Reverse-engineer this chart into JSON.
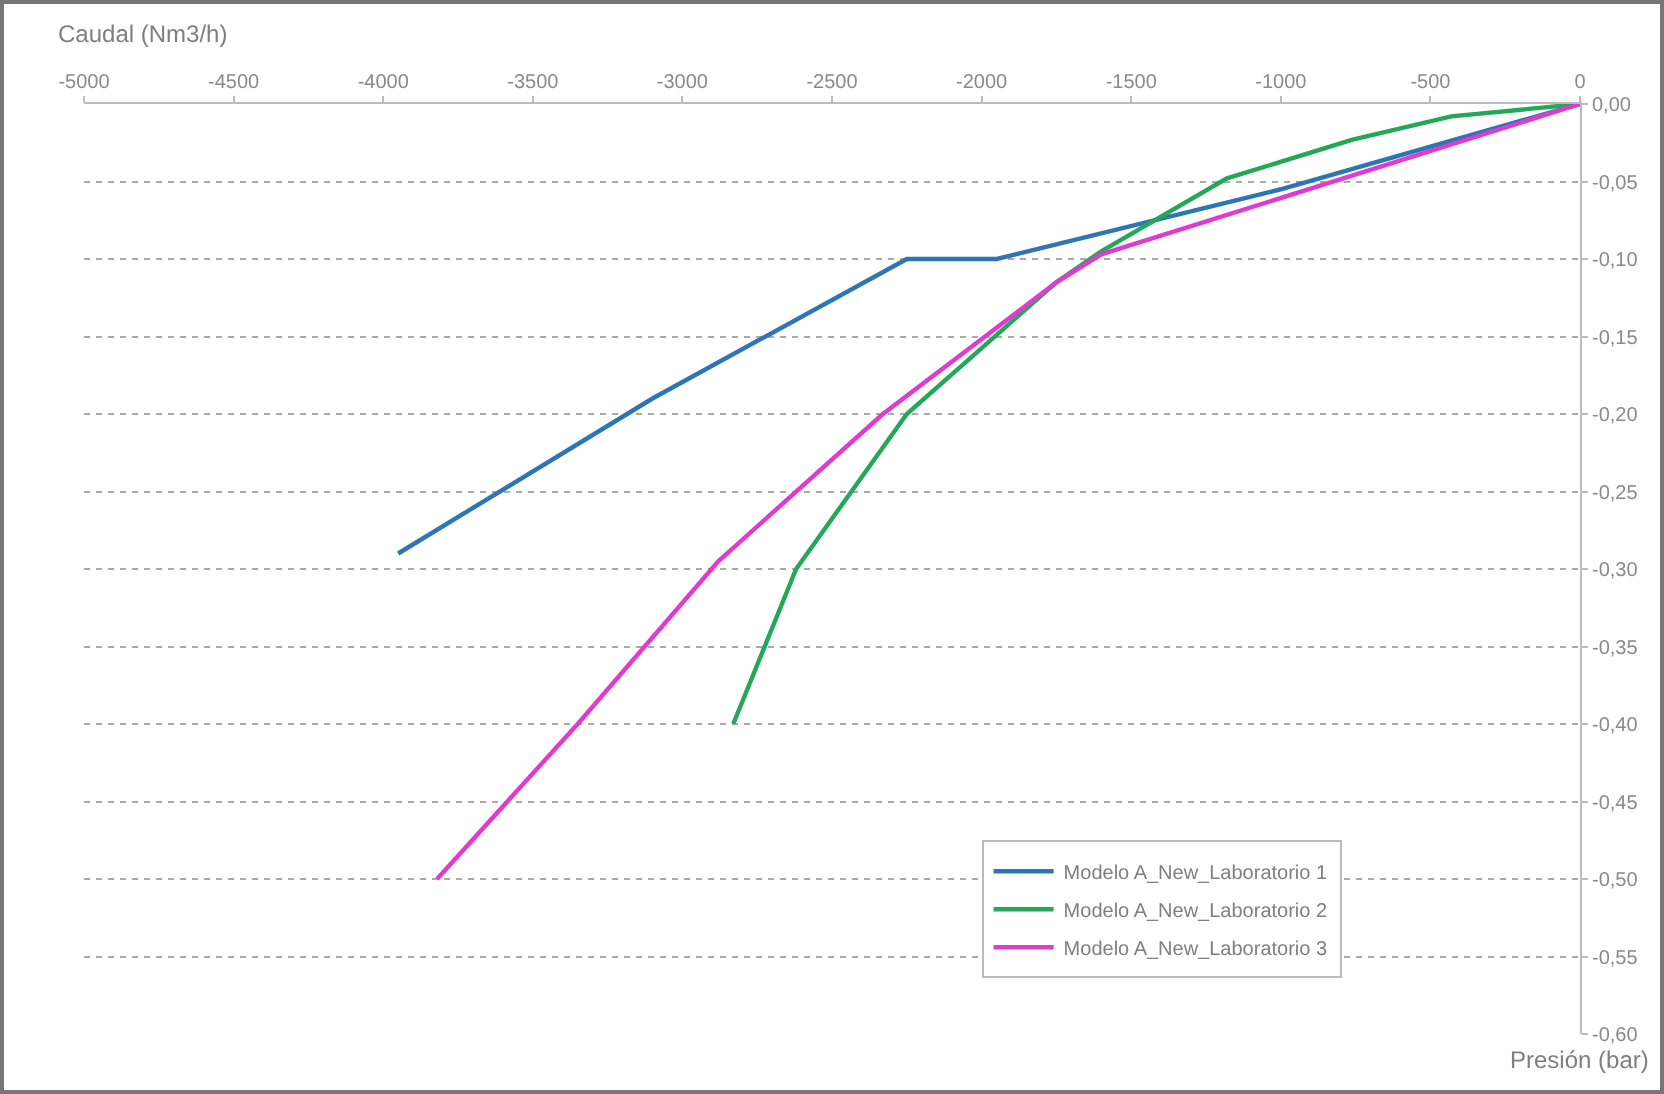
{
  "chart_data": {
    "type": "line",
    "xlabel": "Presión (bar)",
    "ylabel": "Caudal (Nm3/h)",
    "xlim": [
      -5000,
      0
    ],
    "xticks": [
      -5000,
      -4500,
      -4000,
      -3500,
      -3000,
      -2500,
      -2000,
      -1500,
      -1000,
      -500,
      0
    ],
    "ylim": [
      -0.6,
      0
    ],
    "yticks": [
      {
        "value": 0,
        "label": "0,00"
      },
      {
        "value": -0.05,
        "label": "-0,05"
      },
      {
        "value": -0.1,
        "label": "-0,10"
      },
      {
        "value": -0.15,
        "label": "-0,15"
      },
      {
        "value": -0.2,
        "label": "-0,20"
      },
      {
        "value": -0.25,
        "label": "-0,25"
      },
      {
        "value": -0.3,
        "label": "-0,30"
      },
      {
        "value": -0.35,
        "label": "-0,35"
      },
      {
        "value": -0.4,
        "label": "-0,40"
      },
      {
        "value": -0.45,
        "label": "-0,45"
      },
      {
        "value": -0.5,
        "label": "-0,50"
      },
      {
        "value": -0.55,
        "label": "-0,55"
      },
      {
        "value": -0.6,
        "label": "-0,60"
      }
    ],
    "grid": "y",
    "legend": "bottom right",
    "marker": "none",
    "line_style": "solid",
    "series": [
      {
        "name": "Modelo A_New_Laboratorio 1",
        "color": "#2e75b6",
        "x": [
          -3950,
          -3100,
          -2250,
          -1950,
          -1000,
          0
        ],
        "values": [
          -0.29,
          -0.19,
          -0.1,
          -0.1,
          -0.055,
          0
        ]
      },
      {
        "name": "Modelo A_New_Laboratorio 2",
        "color": "#23a85a",
        "x": [
          -2830,
          -2620,
          -2250,
          -1750,
          -1600,
          -1180,
          -760,
          -430,
          0
        ],
        "values": [
          -0.4,
          -0.3,
          -0.2,
          -0.115,
          -0.095,
          -0.048,
          -0.023,
          -0.008,
          0
        ]
      },
      {
        "name": "Modelo A_New_Laboratorio 3",
        "color": "#e03ad0",
        "x": [
          -3820,
          -3350,
          -2880,
          -2330,
          -1750,
          -1600,
          0
        ],
        "values": [
          -0.5,
          -0.4,
          -0.295,
          -0.2,
          -0.115,
          -0.097,
          0
        ]
      }
    ]
  }
}
